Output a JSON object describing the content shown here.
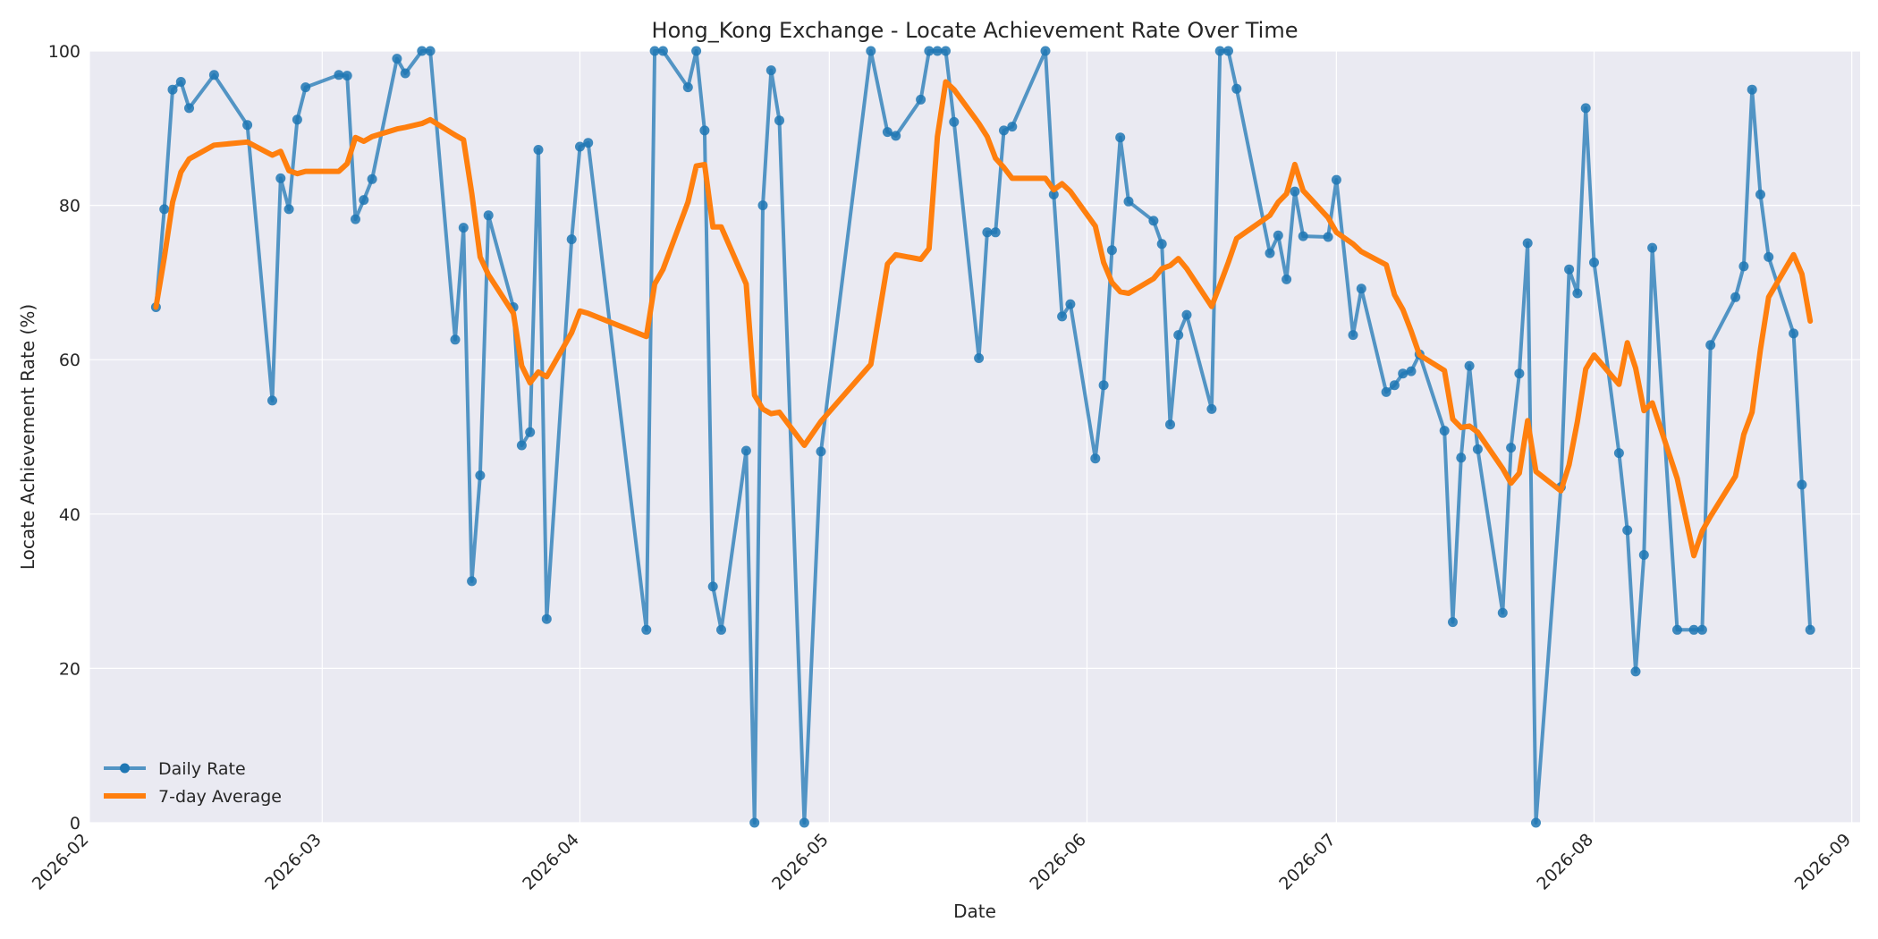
{
  "chart_data": {
    "type": "line",
    "title": "Hong_Kong Exchange - Locate Achievement Rate Over Time",
    "xlabel": "Date",
    "ylabel": "Locate Achievement Rate (%)",
    "xlim": [
      "2026-02-01",
      "2026-09-02"
    ],
    "ylim": [
      0,
      100
    ],
    "x_ticks": [
      "2026-02",
      "2026-03",
      "2026-04",
      "2026-05",
      "2026-06",
      "2026-07",
      "2026-08",
      "2026-09"
    ],
    "y_ticks": [
      0,
      20,
      40,
      60,
      80,
      100
    ],
    "grid": true,
    "legend_position": "bottom-left",
    "colors": {
      "daily": "#1f77b4",
      "avg": "#ff7f0e",
      "plot_bg": "#eaeaf2",
      "grid": "#ffffff"
    },
    "series": [
      {
        "name": "Daily Rate",
        "marker": "circle",
        "points": [
          [
            "2026-02-09",
            66.8
          ],
          [
            "2026-02-10",
            79.5
          ],
          [
            "2026-02-11",
            95.0
          ],
          [
            "2026-02-12",
            96.0
          ],
          [
            "2026-02-13",
            92.6
          ],
          [
            "2026-02-16",
            96.9
          ],
          [
            "2026-02-20",
            90.4
          ],
          [
            "2026-02-23",
            54.7
          ],
          [
            "2026-02-24",
            83.5
          ],
          [
            "2026-02-25",
            79.5
          ],
          [
            "2026-02-26",
            91.1
          ],
          [
            "2026-02-27",
            95.3
          ],
          [
            "2026-03-03",
            96.9
          ],
          [
            "2026-03-04",
            96.8
          ],
          [
            "2026-03-05",
            78.2
          ],
          [
            "2026-03-06",
            80.7
          ],
          [
            "2026-03-07",
            83.4
          ],
          [
            "2026-03-10",
            99.0
          ],
          [
            "2026-03-11",
            97.1
          ],
          [
            "2026-03-13",
            100.0
          ],
          [
            "2026-03-14",
            100.0
          ],
          [
            "2026-03-17",
            62.6
          ],
          [
            "2026-03-18",
            77.1
          ],
          [
            "2026-03-19",
            31.3
          ],
          [
            "2026-03-20",
            45.0
          ],
          [
            "2026-03-21",
            78.7
          ],
          [
            "2026-03-24",
            66.8
          ],
          [
            "2026-03-25",
            48.9
          ],
          [
            "2026-03-26",
            50.6
          ],
          [
            "2026-03-27",
            87.2
          ],
          [
            "2026-03-28",
            26.4
          ],
          [
            "2026-03-31",
            75.6
          ],
          [
            "2026-04-01",
            87.6
          ],
          [
            "2026-04-02",
            88.1
          ],
          [
            "2026-04-09",
            25.0
          ],
          [
            "2026-04-10",
            100.0
          ],
          [
            "2026-04-11",
            100.0
          ],
          [
            "2026-04-14",
            95.3
          ],
          [
            "2026-04-15",
            100.0
          ],
          [
            "2026-04-16",
            89.7
          ],
          [
            "2026-04-17",
            30.6
          ],
          [
            "2026-04-18",
            25.0
          ],
          [
            "2026-04-21",
            48.2
          ],
          [
            "2026-04-22",
            0.0
          ],
          [
            "2026-04-23",
            80.0
          ],
          [
            "2026-04-24",
            97.5
          ],
          [
            "2026-04-25",
            91.0
          ],
          [
            "2026-04-28",
            0.0
          ],
          [
            "2026-04-30",
            48.1
          ],
          [
            "2026-05-06",
            100.0
          ],
          [
            "2026-05-08",
            89.5
          ],
          [
            "2026-05-09",
            89.0
          ],
          [
            "2026-05-12",
            93.7
          ],
          [
            "2026-05-13",
            100.0
          ],
          [
            "2026-05-14",
            100.0
          ],
          [
            "2026-05-15",
            100.0
          ],
          [
            "2026-05-16",
            90.8
          ],
          [
            "2026-05-19",
            60.2
          ],
          [
            "2026-05-20",
            76.5
          ],
          [
            "2026-05-21",
            76.5
          ],
          [
            "2026-05-22",
            89.7
          ],
          [
            "2026-05-23",
            90.2
          ],
          [
            "2026-05-27",
            100.0
          ],
          [
            "2026-05-28",
            81.4
          ],
          [
            "2026-05-29",
            65.6
          ],
          [
            "2026-05-30",
            67.2
          ],
          [
            "2026-06-02",
            47.2
          ],
          [
            "2026-06-03",
            56.7
          ],
          [
            "2026-06-04",
            74.2
          ],
          [
            "2026-06-05",
            88.8
          ],
          [
            "2026-06-06",
            80.5
          ],
          [
            "2026-06-09",
            78.0
          ],
          [
            "2026-06-10",
            75.0
          ],
          [
            "2026-06-11",
            51.6
          ],
          [
            "2026-06-12",
            63.2
          ],
          [
            "2026-06-13",
            65.8
          ],
          [
            "2026-06-16",
            53.6
          ],
          [
            "2026-06-17",
            100.0
          ],
          [
            "2026-06-18",
            100.0
          ],
          [
            "2026-06-19",
            95.1
          ],
          [
            "2026-06-23",
            73.8
          ],
          [
            "2026-06-24",
            76.1
          ],
          [
            "2026-06-25",
            70.4
          ],
          [
            "2026-06-26",
            81.8
          ],
          [
            "2026-06-27",
            76.0
          ],
          [
            "2026-06-30",
            75.9
          ],
          [
            "2026-07-01",
            83.3
          ],
          [
            "2026-07-03",
            63.2
          ],
          [
            "2026-07-04",
            69.2
          ],
          [
            "2026-07-07",
            55.8
          ],
          [
            "2026-07-08",
            56.7
          ],
          [
            "2026-07-09",
            58.2
          ],
          [
            "2026-07-10",
            58.5
          ],
          [
            "2026-07-11",
            60.7
          ],
          [
            "2026-07-14",
            50.8
          ],
          [
            "2026-07-15",
            26.0
          ],
          [
            "2026-07-16",
            47.3
          ],
          [
            "2026-07-17",
            59.2
          ],
          [
            "2026-07-18",
            48.4
          ],
          [
            "2026-07-21",
            27.2
          ],
          [
            "2026-07-22",
            48.6
          ],
          [
            "2026-07-23",
            58.2
          ],
          [
            "2026-07-24",
            75.1
          ],
          [
            "2026-07-25",
            0.0
          ],
          [
            "2026-07-28",
            43.5
          ],
          [
            "2026-07-29",
            71.7
          ],
          [
            "2026-07-30",
            68.6
          ],
          [
            "2026-07-31",
            92.6
          ],
          [
            "2026-08-01",
            72.6
          ],
          [
            "2026-08-04",
            47.9
          ],
          [
            "2026-08-05",
            37.9
          ],
          [
            "2026-08-06",
            19.6
          ],
          [
            "2026-08-07",
            34.7
          ],
          [
            "2026-08-08",
            74.5
          ],
          [
            "2026-08-11",
            25.0
          ],
          [
            "2026-08-13",
            25.0
          ],
          [
            "2026-08-14",
            25.0
          ],
          [
            "2026-08-15",
            61.9
          ],
          [
            "2026-08-18",
            68.1
          ],
          [
            "2026-08-19",
            72.1
          ],
          [
            "2026-08-20",
            95.0
          ],
          [
            "2026-08-21",
            81.4
          ],
          [
            "2026-08-22",
            73.3
          ],
          [
            "2026-08-25",
            63.4
          ],
          [
            "2026-08-26",
            43.8
          ],
          [
            "2026-08-27",
            25.0
          ]
        ]
      },
      {
        "name": "7-day Average",
        "marker": "none",
        "points": [
          [
            "2026-02-09",
            66.8
          ],
          [
            "2026-02-10",
            73.2
          ],
          [
            "2026-02-11",
            80.4
          ],
          [
            "2026-02-12",
            84.3
          ],
          [
            "2026-02-13",
            86.0
          ],
          [
            "2026-02-16",
            87.8
          ],
          [
            "2026-02-20",
            88.2
          ],
          [
            "2026-02-23",
            86.5
          ],
          [
            "2026-02-24",
            87.0
          ],
          [
            "2026-02-25",
            84.5
          ],
          [
            "2026-02-26",
            84.1
          ],
          [
            "2026-02-27",
            84.4
          ],
          [
            "2026-03-03",
            84.4
          ],
          [
            "2026-03-04",
            85.4
          ],
          [
            "2026-03-05",
            88.8
          ],
          [
            "2026-03-06",
            88.3
          ],
          [
            "2026-03-07",
            88.9
          ],
          [
            "2026-03-10",
            89.9
          ],
          [
            "2026-03-11",
            90.1
          ],
          [
            "2026-03-13",
            90.6
          ],
          [
            "2026-03-14",
            91.1
          ],
          [
            "2026-03-17",
            89.1
          ],
          [
            "2026-03-18",
            88.5
          ],
          [
            "2026-03-19",
            81.5
          ],
          [
            "2026-03-20",
            73.3
          ],
          [
            "2026-03-21",
            71.0
          ],
          [
            "2026-03-24",
            66.0
          ],
          [
            "2026-03-25",
            59.2
          ],
          [
            "2026-03-26",
            57.0
          ],
          [
            "2026-03-27",
            58.4
          ],
          [
            "2026-03-28",
            57.8
          ],
          [
            "2026-03-31",
            63.5
          ],
          [
            "2026-04-01",
            66.3
          ],
          [
            "2026-04-02",
            66.0
          ],
          [
            "2026-04-09",
            63.0
          ],
          [
            "2026-04-10",
            69.8
          ],
          [
            "2026-04-11",
            71.7
          ],
          [
            "2026-04-14",
            80.4
          ],
          [
            "2026-04-15",
            85.1
          ],
          [
            "2026-04-16",
            85.3
          ],
          [
            "2026-04-17",
            77.2
          ],
          [
            "2026-04-18",
            77.2
          ],
          [
            "2026-04-21",
            69.8
          ],
          [
            "2026-04-22",
            55.4
          ],
          [
            "2026-04-23",
            53.6
          ],
          [
            "2026-04-24",
            53.0
          ],
          [
            "2026-04-25",
            53.2
          ],
          [
            "2026-04-28",
            48.9
          ],
          [
            "2026-04-30",
            52.0
          ],
          [
            "2026-05-06",
            59.4
          ],
          [
            "2026-05-08",
            72.4
          ],
          [
            "2026-05-09",
            73.6
          ],
          [
            "2026-05-12",
            73.0
          ],
          [
            "2026-05-13",
            74.4
          ],
          [
            "2026-05-14",
            88.9
          ],
          [
            "2026-05-15",
            96.0
          ],
          [
            "2026-05-16",
            95.0
          ],
          [
            "2026-05-19",
            90.6
          ],
          [
            "2026-05-20",
            88.9
          ],
          [
            "2026-05-21",
            86.1
          ],
          [
            "2026-05-22",
            84.9
          ],
          [
            "2026-05-23",
            83.5
          ],
          [
            "2026-05-27",
            83.5
          ],
          [
            "2026-05-28",
            82.0
          ],
          [
            "2026-05-29",
            82.8
          ],
          [
            "2026-05-30",
            81.8
          ],
          [
            "2026-06-02",
            77.3
          ],
          [
            "2026-06-03",
            72.6
          ],
          [
            "2026-06-04",
            70.0
          ],
          [
            "2026-06-05",
            68.8
          ],
          [
            "2026-06-06",
            68.6
          ],
          [
            "2026-06-09",
            70.5
          ],
          [
            "2026-06-10",
            71.8
          ],
          [
            "2026-06-11",
            72.2
          ],
          [
            "2026-06-12",
            73.1
          ],
          [
            "2026-06-13",
            71.8
          ],
          [
            "2026-06-16",
            66.9
          ],
          [
            "2026-06-17",
            69.7
          ],
          [
            "2026-06-18",
            72.6
          ],
          [
            "2026-06-19",
            75.7
          ],
          [
            "2026-06-23",
            78.7
          ],
          [
            "2026-06-24",
            80.4
          ],
          [
            "2026-06-25",
            81.5
          ],
          [
            "2026-06-26",
            85.3
          ],
          [
            "2026-06-27",
            81.9
          ],
          [
            "2026-06-30",
            78.4
          ],
          [
            "2026-07-01",
            76.5
          ],
          [
            "2026-07-03",
            75.0
          ],
          [
            "2026-07-04",
            74.0
          ],
          [
            "2026-07-07",
            72.3
          ],
          [
            "2026-07-08",
            68.4
          ],
          [
            "2026-07-09",
            66.5
          ],
          [
            "2026-07-10",
            63.7
          ],
          [
            "2026-07-11",
            60.6
          ],
          [
            "2026-07-14",
            58.6
          ],
          [
            "2026-07-15",
            52.3
          ],
          [
            "2026-07-16",
            51.2
          ],
          [
            "2026-07-17",
            51.4
          ],
          [
            "2026-07-18",
            50.6
          ],
          [
            "2026-07-21",
            45.9
          ],
          [
            "2026-07-22",
            44.0
          ],
          [
            "2026-07-23",
            45.3
          ],
          [
            "2026-07-24",
            52.1
          ],
          [
            "2026-07-25",
            45.5
          ],
          [
            "2026-07-28",
            43.0
          ],
          [
            "2026-07-29",
            46.4
          ],
          [
            "2026-07-30",
            52.0
          ],
          [
            "2026-07-31",
            58.8
          ],
          [
            "2026-08-01",
            60.6
          ],
          [
            "2026-08-04",
            56.8
          ],
          [
            "2026-08-05",
            62.2
          ],
          [
            "2026-08-06",
            58.9
          ],
          [
            "2026-08-07",
            53.4
          ],
          [
            "2026-08-08",
            54.4
          ],
          [
            "2026-08-11",
            44.6
          ],
          [
            "2026-08-13",
            34.6
          ],
          [
            "2026-08-14",
            37.8
          ],
          [
            "2026-08-15",
            39.7
          ],
          [
            "2026-08-18",
            44.9
          ],
          [
            "2026-08-19",
            50.3
          ],
          [
            "2026-08-20",
            53.2
          ],
          [
            "2026-08-21",
            61.3
          ],
          [
            "2026-08-22",
            68.1
          ],
          [
            "2026-08-25",
            73.6
          ],
          [
            "2026-08-26",
            71.1
          ],
          [
            "2026-08-27",
            65.0
          ]
        ]
      }
    ]
  }
}
